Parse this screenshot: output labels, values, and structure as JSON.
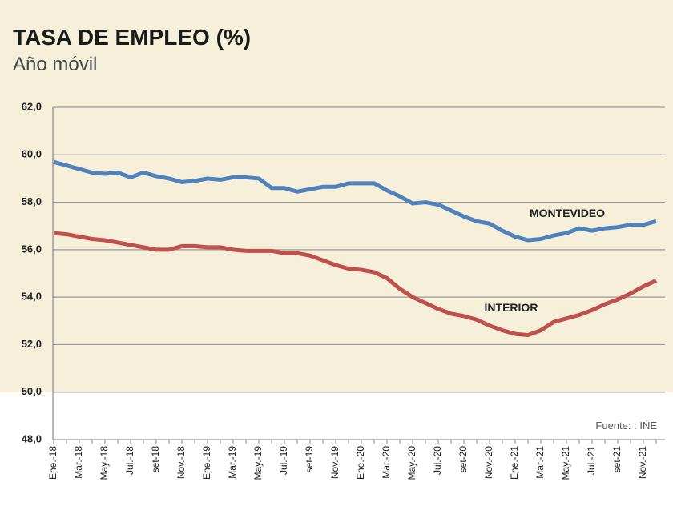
{
  "chart_data": {
    "type": "line",
    "title": "TASA DE EMPLEO (%)",
    "subtitle": "Año móvil",
    "source": "Fuente: : INE",
    "categories": [
      "Ene.-18",
      null,
      "Mar.-18",
      null,
      "May.-18",
      null,
      "Jul.-18",
      null,
      "set-18",
      null,
      "Nov.-18",
      null,
      "Ene.-19",
      null,
      "Mar.-19",
      null,
      "May.-19",
      null,
      "Jul.-19",
      null,
      "set-19",
      null,
      "Nov.-19",
      null,
      "Ene.-20",
      null,
      "Mar.-20",
      null,
      "May.-20",
      null,
      "Jul.-20",
      null,
      "set-20",
      null,
      "Nov.-20",
      null,
      "Ene.-21",
      null,
      "Mar.-21",
      null,
      "May.-21",
      null,
      "Jul.-21",
      null,
      "set-21",
      null,
      "Nov.-21",
      null
    ],
    "series": [
      {
        "name": "MONTEVIDEO",
        "color": "#4f81bd",
        "values": [
          59.7,
          59.55,
          59.4,
          59.25,
          59.2,
          59.25,
          59.05,
          59.25,
          59.1,
          59.0,
          58.85,
          58.9,
          59.0,
          58.95,
          59.05,
          59.05,
          59.0,
          58.6,
          58.6,
          58.45,
          58.55,
          58.65,
          58.65,
          58.8,
          58.8,
          58.8,
          58.5,
          58.25,
          57.95,
          58.0,
          57.9,
          57.65,
          57.4,
          57.2,
          57.1,
          56.8,
          56.55,
          56.4,
          56.45,
          56.6,
          56.7,
          56.9,
          56.8,
          56.9,
          56.95,
          57.05,
          57.05,
          57.2
        ]
      },
      {
        "name": "INTERIOR",
        "color": "#c0504d",
        "values": [
          56.7,
          56.65,
          56.55,
          56.45,
          56.4,
          56.3,
          56.2,
          56.1,
          56.0,
          56.0,
          56.15,
          56.15,
          56.1,
          56.1,
          56.0,
          55.95,
          55.95,
          55.95,
          55.85,
          55.85,
          55.75,
          55.55,
          55.35,
          55.2,
          55.15,
          55.05,
          54.8,
          54.35,
          54.0,
          53.75,
          53.5,
          53.3,
          53.2,
          53.05,
          52.8,
          52.6,
          52.45,
          52.4,
          52.6,
          52.95,
          53.1,
          53.25,
          53.45,
          53.7,
          53.9,
          54.15,
          54.45,
          54.7
        ]
      }
    ],
    "ylim": [
      48,
      62
    ],
    "yticks": [
      {
        "value": 48,
        "label": "48,0"
      },
      {
        "value": 50,
        "label": "50,0"
      },
      {
        "value": 52,
        "label": "52,0"
      },
      {
        "value": 54,
        "label": "54,0"
      },
      {
        "value": 56,
        "label": "56,0"
      },
      {
        "value": 58,
        "label": "58,0"
      },
      {
        "value": 60,
        "label": "60,0"
      },
      {
        "value": 62,
        "label": "62,0"
      }
    ],
    "grid": true
  }
}
